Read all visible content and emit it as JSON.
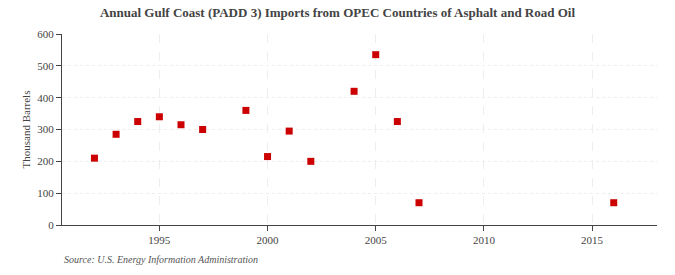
{
  "chart_data": {
    "type": "scatter",
    "title": "Annual Gulf Coast (PADD 3) Imports from OPEC Countries of Asphalt and Road Oil",
    "ylabel": "Thousand Barrels",
    "source": "Source: U.S. Energy Information Administration",
    "x": [
      1992,
      1993,
      1994,
      1995,
      1996,
      1997,
      1999,
      2000,
      2001,
      2002,
      2004,
      2005,
      2006,
      2007,
      2016
    ],
    "values": [
      210,
      285,
      325,
      340,
      315,
      300,
      360,
      215,
      295,
      200,
      420,
      535,
      325,
      70,
      70
    ],
    "color": "#cc0000",
    "marker": "square",
    "xlim": [
      1990.5,
      2018
    ],
    "ylim": [
      0,
      600
    ],
    "xticks": [
      1995,
      2000,
      2005,
      2010,
      2015
    ],
    "yticks": [
      0,
      100,
      200,
      300,
      400,
      500,
      600
    ],
    "grid": true
  }
}
